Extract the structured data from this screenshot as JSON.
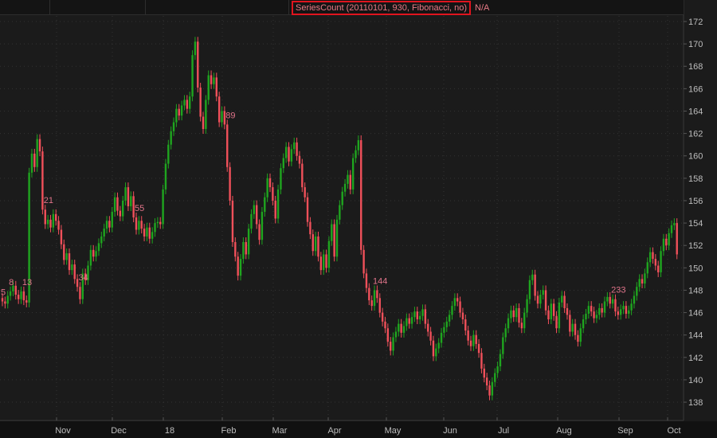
{
  "header": {
    "study_label": "SeriesCount (20110101, 930, Fibonacci, no)",
    "study_value": "N/A"
  },
  "colors": {
    "background": "#1b1b1b",
    "up": "#1fa51f",
    "down": "#f0505a",
    "label": "#e0748a",
    "highlight_box": "#e0141e"
  },
  "chart_data": {
    "type": "candlestick",
    "title": "",
    "ylim": [
      137,
      173
    ],
    "yticks": [
      138,
      140,
      142,
      144,
      146,
      148,
      150,
      152,
      154,
      156,
      158,
      160,
      162,
      164,
      166,
      168,
      170,
      172
    ],
    "xticks": [
      "Nov",
      "Dec",
      "18",
      "Feb",
      "Mar",
      "Apr",
      "May",
      "Jun",
      "Jul",
      "Aug",
      "Sep",
      "Oct"
    ],
    "grid": true,
    "first_bar_number": 5,
    "closes": [
      147.0,
      146.8,
      147.5,
      147.9,
      148.4,
      147.6,
      147.2,
      147.9,
      147.1,
      146.9,
      158.5,
      160.2,
      159.0,
      161.5,
      160.4,
      155.2,
      153.9,
      154.3,
      153.6,
      154.8,
      154.2,
      153.4,
      152.1,
      150.7,
      151.3,
      149.8,
      150.3,
      149.0,
      148.3,
      147.2,
      149.5,
      148.9,
      150.2,
      151.6,
      151.0,
      151.5,
      152.2,
      152.8,
      153.5,
      154.2,
      153.6,
      155.0,
      156.3,
      155.1,
      154.6,
      156.0,
      157.2,
      155.5,
      156.4,
      154.5,
      153.4,
      154.2,
      153.5,
      152.8,
      153.6,
      152.6,
      153.2,
      154.0,
      154.1,
      153.9,
      157.0,
      159.3,
      161.0,
      162.2,
      163.0,
      164.2,
      163.6,
      164.5,
      165.0,
      164.2,
      165.3,
      169.0,
      170.2,
      166.1,
      163.5,
      162.4,
      165.0,
      167.2,
      166.4,
      167.0,
      165.3,
      163.0,
      164.0,
      162.8,
      159.0,
      156.0,
      152.3,
      151.0,
      149.3,
      150.8,
      152.3,
      151.2,
      153.5,
      154.8,
      155.6,
      153.9,
      152.5,
      155.0,
      156.3,
      158.0,
      157.2,
      156.0,
      154.4,
      157.0,
      158.9,
      159.8,
      160.8,
      159.5,
      160.6,
      161.2,
      160.0,
      159.3,
      157.2,
      156.3,
      154.1,
      153.0,
      151.5,
      152.8,
      151.0,
      149.8,
      151.2,
      150.0,
      152.4,
      153.9,
      151.0,
      154.3,
      155.6,
      156.8,
      157.5,
      158.3,
      157.0,
      159.8,
      160.5,
      161.4,
      151.6,
      149.5,
      148.2,
      147.1,
      146.6,
      148.0,
      147.3,
      146.0,
      145.2,
      144.6,
      143.4,
      142.6,
      143.8,
      144.3,
      145.0,
      144.2,
      144.8,
      145.5,
      145.0,
      145.6,
      146.1,
      145.4,
      145.7,
      146.3,
      145.0,
      144.3,
      143.5,
      142.1,
      142.8,
      143.3,
      144.2,
      144.7,
      145.2,
      145.8,
      146.6,
      147.3,
      147.0,
      146.0,
      145.4,
      144.4,
      143.5,
      143.0,
      144.0,
      143.2,
      142.4,
      141.0,
      140.2,
      139.5,
      138.6,
      139.8,
      140.6,
      141.2,
      142.3,
      143.8,
      144.6,
      145.5,
      146.2,
      145.6,
      146.4,
      145.1,
      144.6,
      146.0,
      147.2,
      148.9,
      149.4,
      147.5,
      146.8,
      147.6,
      148.0,
      146.2,
      145.4,
      146.8,
      145.7,
      144.6,
      146.9,
      147.5,
      146.4,
      145.8,
      144.3,
      145.0,
      144.0,
      143.4,
      144.6,
      145.4,
      145.9,
      146.6,
      146.1,
      145.5,
      145.8,
      146.4,
      146.0,
      147.0,
      147.4,
      146.8,
      147.2,
      146.1,
      145.8,
      146.3,
      146.6,
      145.9,
      146.2,
      146.8,
      147.5,
      148.3,
      149.0,
      148.6,
      149.5,
      150.5,
      151.4,
      150.8,
      150.2,
      149.6,
      151.5,
      152.6,
      152.0,
      153.1,
      153.8,
      154.0,
      151.2
    ],
    "fib_labels": [
      "5",
      "8",
      "13",
      "21",
      "34",
      "55",
      "89",
      "144",
      "233"
    ]
  }
}
